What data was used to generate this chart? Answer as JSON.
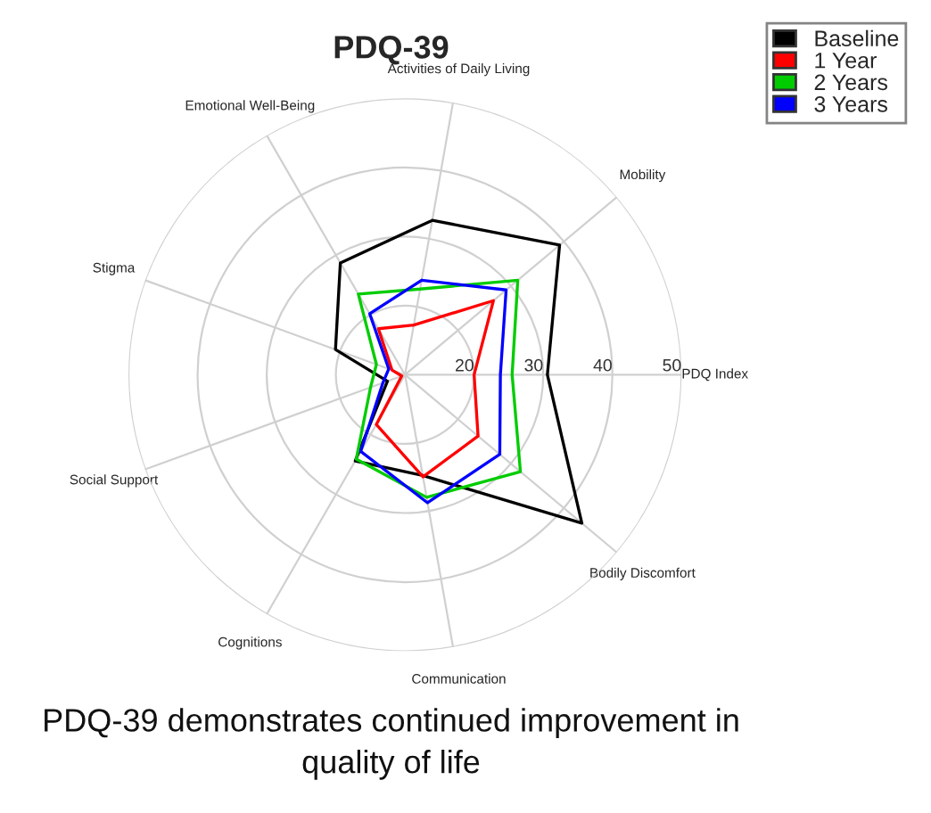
{
  "chart_data": {
    "type": "radar",
    "title": "PDQ-39",
    "categories": [
      "Activities of Daily Living",
      "Mobility",
      "PDQ Index",
      "Bodily Discomfort",
      "Communication",
      "Cognitions",
      "Social Support",
      "Stigma",
      "Emotional Well-Being"
    ],
    "series": [
      {
        "name": "Baseline",
        "color": "#000000",
        "values": [
          32.7,
          39.2,
          30.6,
          43.4,
          24.8,
          24.4,
          12.7,
          20.7,
          28.7
        ]
      },
      {
        "name": "1 Year",
        "color": "#ff0000",
        "values": [
          17.3,
          26.7,
          20.0,
          23.8,
          25.0,
          18.3,
          10.5,
          12.0,
          17.7
        ]
      },
      {
        "name": "2 Years",
        "color": "#00cc00",
        "values": [
          22.6,
          31.3,
          25.5,
          31.8,
          28.0,
          24.1,
          15.3,
          14.4,
          23.5
        ]
      },
      {
        "name": "3 Years",
        "color": "#0000ff",
        "values": [
          23.9,
          29.1,
          23.8,
          27.9,
          28.8,
          22.8,
          13.4,
          12.5,
          20.2
        ]
      }
    ],
    "ylim": [
      10,
      50
    ],
    "yticks": [
      20,
      30,
      40,
      50
    ],
    "grid": true,
    "legend": "top right",
    "marker": "none",
    "line_style": "solid",
    "annotations": [
      "PDQ-39 demonstrates continued improvement in quality of life"
    ]
  }
}
